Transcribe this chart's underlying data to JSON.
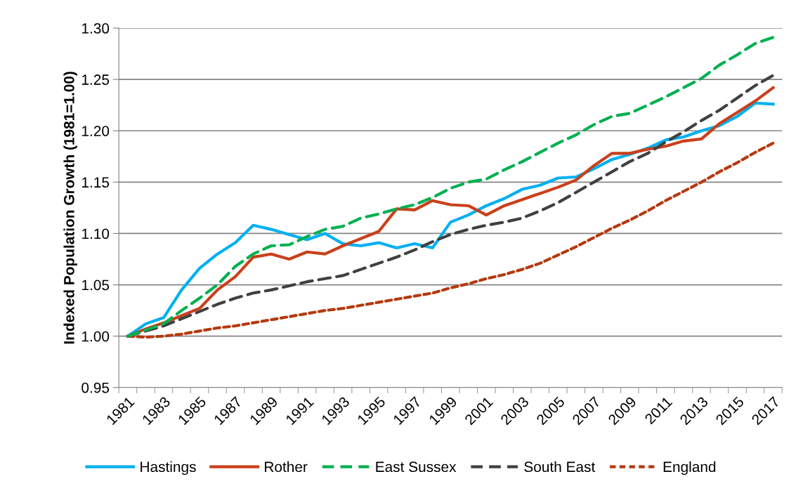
{
  "chart_data": {
    "type": "line",
    "ylabel": "Indexed Population Growth (1981=1.00)",
    "categories": [
      "1981",
      null,
      "1983",
      null,
      "1985",
      null,
      "1987",
      null,
      "1989",
      null,
      "1991",
      null,
      "1993",
      null,
      "1995",
      null,
      "1997",
      null,
      "1999",
      null,
      "2001",
      null,
      "2003",
      null,
      "2005",
      null,
      "2007",
      null,
      "2009",
      null,
      "2011",
      null,
      "2013",
      null,
      "2015",
      null,
      "2017"
    ],
    "ylim": [
      0.95,
      1.3
    ],
    "yticks": [
      {
        "value": 0.95,
        "label": "0.95"
      },
      {
        "value": 1.0,
        "label": "1.00"
      },
      {
        "value": 1.05,
        "label": "1.05"
      },
      {
        "value": 1.1,
        "label": "1.10"
      },
      {
        "value": 1.15,
        "label": "1.15"
      },
      {
        "value": 1.2,
        "label": "1.20"
      },
      {
        "value": 1.25,
        "label": "1.25"
      },
      {
        "value": 1.3,
        "label": "1.30"
      }
    ],
    "grid": "y",
    "legend": "bottom",
    "marker": "none",
    "series": [
      {
        "name": "Hastings",
        "color": "#00b0f0",
        "line_style": "solid",
        "values": [
          1.0,
          1.012,
          1.018,
          1.045,
          1.066,
          1.08,
          1.091,
          1.108,
          1.104,
          1.099,
          1.094,
          1.1,
          1.09,
          1.088,
          1.091,
          1.086,
          1.09,
          1.086,
          1.111,
          1.118,
          1.127,
          1.134,
          1.143,
          1.147,
          1.154,
          1.155,
          1.163,
          1.172,
          1.177,
          1.183,
          1.191,
          1.194,
          1.2,
          1.205,
          1.214,
          1.227,
          1.226
        ]
      },
      {
        "name": "Rother",
        "color": "#c9401a",
        "line_style": "solid",
        "values": [
          1.0,
          1.007,
          1.013,
          1.02,
          1.027,
          1.045,
          1.058,
          1.077,
          1.08,
          1.075,
          1.082,
          1.08,
          1.088,
          1.095,
          1.102,
          1.124,
          1.123,
          1.132,
          1.128,
          1.127,
          1.118,
          1.127,
          1.133,
          1.139,
          1.145,
          1.152,
          1.166,
          1.178,
          1.178,
          1.182,
          1.185,
          1.19,
          1.192,
          1.207,
          1.218,
          1.229,
          1.242
        ]
      },
      {
        "name": "East Sussex",
        "color": "#00b050",
        "line_style": "dashed",
        "values": [
          1.0,
          1.006,
          1.012,
          1.025,
          1.037,
          1.05,
          1.068,
          1.08,
          1.088,
          1.089,
          1.097,
          1.104,
          1.107,
          1.115,
          1.119,
          1.124,
          1.128,
          1.135,
          1.144,
          1.15,
          1.153,
          1.162,
          1.17,
          1.179,
          1.188,
          1.196,
          1.206,
          1.214,
          1.217,
          1.225,
          1.233,
          1.242,
          1.251,
          1.264,
          1.274,
          1.285,
          1.291
        ]
      },
      {
        "name": "South East",
        "color": "#404040",
        "line_style": "dashed",
        "values": [
          1.0,
          1.005,
          1.01,
          1.017,
          1.024,
          1.031,
          1.037,
          1.042,
          1.045,
          1.049,
          1.053,
          1.056,
          1.059,
          1.065,
          1.071,
          1.077,
          1.084,
          1.092,
          1.099,
          1.104,
          1.108,
          1.111,
          1.115,
          1.122,
          1.13,
          1.14,
          1.15,
          1.16,
          1.17,
          1.178,
          1.189,
          1.199,
          1.21,
          1.22,
          1.232,
          1.244,
          1.254
        ]
      },
      {
        "name": "England",
        "color": "#b5390f",
        "line_style": "dotted",
        "values": [
          1.0,
          0.999,
          1.0,
          1.002,
          1.005,
          1.008,
          1.01,
          1.013,
          1.016,
          1.019,
          1.022,
          1.025,
          1.027,
          1.03,
          1.033,
          1.036,
          1.039,
          1.042,
          1.047,
          1.051,
          1.056,
          1.06,
          1.065,
          1.071,
          1.079,
          1.087,
          1.096,
          1.105,
          1.113,
          1.122,
          1.132,
          1.141,
          1.15,
          1.16,
          1.169,
          1.179,
          1.188
        ]
      }
    ]
  }
}
